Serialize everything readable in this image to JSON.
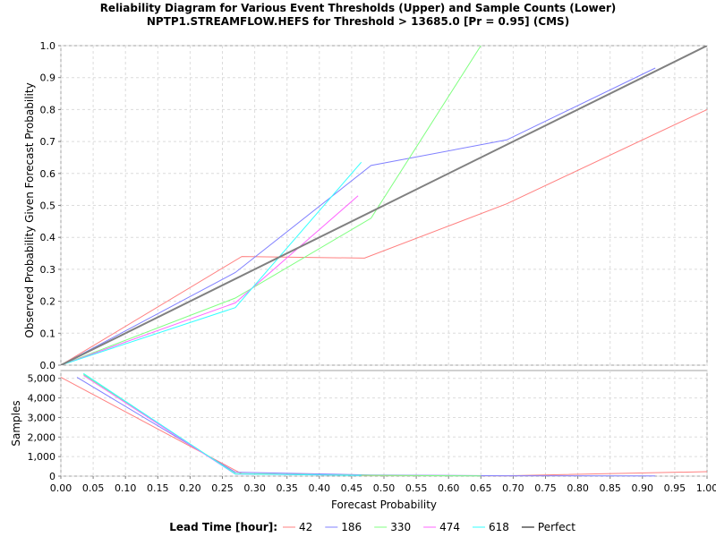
{
  "chart_data": {
    "type": "line",
    "title_line1": "Reliability Diagram for Various Event Thresholds (Upper) and Sample Counts (Lower)",
    "title_line2": "NPTP1.STREAMFLOW.HEFS for Threshold > 13685.0 [Pr = 0.95] (CMS)",
    "xlabel": "Forecast Probability",
    "upper": {
      "ylabel": "Observed Probability Given Forecast Probability",
      "xlim": [
        0,
        1
      ],
      "ylim": [
        0,
        1
      ],
      "yticks": [
        "0.0",
        "0.1",
        "0.2",
        "0.3",
        "0.4",
        "0.5",
        "0.6",
        "0.7",
        "0.8",
        "0.9",
        "1.0"
      ]
    },
    "lower": {
      "ylabel": "Samples",
      "ylim": [
        0,
        5400
      ],
      "yticks": [
        "0",
        "1,000",
        "2,000",
        "3,000",
        "4,000",
        "5,000"
      ]
    },
    "xticks": [
      "0.00",
      "0.05",
      "0.10",
      "0.15",
      "0.20",
      "0.25",
      "0.30",
      "0.35",
      "0.40",
      "0.45",
      "0.50",
      "0.55",
      "0.60",
      "0.65",
      "0.70",
      "0.75",
      "0.80",
      "0.85",
      "0.90",
      "0.95",
      "1.00"
    ],
    "legend_title": "Lead Time [hour]:",
    "series": [
      {
        "name": "42",
        "color": "#ff8080",
        "reliability": [
          [
            0.0,
            0.0
          ],
          [
            0.28,
            0.34
          ],
          [
            0.47,
            0.335
          ],
          [
            0.69,
            0.505
          ],
          [
            1.0,
            0.8
          ]
        ],
        "samples": [
          [
            0.0,
            5050
          ],
          [
            0.28,
            120
          ],
          [
            0.47,
            30
          ],
          [
            0.69,
            20
          ],
          [
            1.0,
            230
          ]
        ]
      },
      {
        "name": "186",
        "color": "#8080ff",
        "reliability": [
          [
            0.0,
            0.0
          ],
          [
            0.27,
            0.29
          ],
          [
            0.48,
            0.625
          ],
          [
            0.69,
            0.705
          ],
          [
            0.92,
            0.93
          ]
        ],
        "samples": [
          [
            0.025,
            5050
          ],
          [
            0.27,
            200
          ],
          [
            0.48,
            60
          ],
          [
            0.69,
            20
          ],
          [
            0.92,
            10
          ]
        ]
      },
      {
        "name": "330",
        "color": "#80ff80",
        "reliability": [
          [
            0.0,
            0.0
          ],
          [
            0.27,
            0.21
          ],
          [
            0.48,
            0.46
          ],
          [
            0.65,
            1.0
          ]
        ],
        "samples": [
          [
            0.035,
            5200
          ],
          [
            0.27,
            130
          ],
          [
            0.48,
            40
          ],
          [
            0.65,
            10
          ]
        ]
      },
      {
        "name": "474",
        "color": "#ff66ff",
        "reliability": [
          [
            0.0,
            0.0
          ],
          [
            0.27,
            0.195
          ],
          [
            0.46,
            0.53
          ]
        ],
        "samples": [
          [
            0.035,
            5150
          ],
          [
            0.27,
            100
          ],
          [
            0.46,
            40
          ]
        ]
      },
      {
        "name": "618",
        "color": "#33ffff",
        "reliability": [
          [
            0.0,
            0.0
          ],
          [
            0.27,
            0.18
          ],
          [
            0.465,
            0.635
          ]
        ],
        "samples": [
          [
            0.035,
            5250
          ],
          [
            0.27,
            110
          ],
          [
            0.465,
            30
          ]
        ]
      },
      {
        "name": "Perfect",
        "color": "#808080",
        "width": 2,
        "reliability": [
          [
            0.0,
            0.0
          ],
          [
            1.0,
            1.0
          ]
        ],
        "samples": []
      }
    ]
  }
}
